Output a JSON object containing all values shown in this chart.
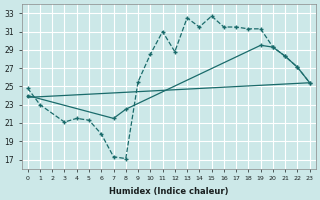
{
  "xlabel": "Humidex (Indice chaleur)",
  "bg_color": "#cce8e8",
  "line_color": "#1a6b6b",
  "grid_color": "#ffffff",
  "xlim": [
    -0.5,
    23.5
  ],
  "ylim": [
    16,
    34
  ],
  "xticks": [
    0,
    1,
    2,
    3,
    4,
    5,
    6,
    7,
    8,
    9,
    10,
    11,
    12,
    13,
    14,
    15,
    16,
    17,
    18,
    19,
    20,
    21,
    22,
    23
  ],
  "yticks": [
    17,
    19,
    21,
    23,
    25,
    27,
    29,
    31,
    33
  ],
  "line1_x": [
    0,
    1,
    3,
    4,
    5,
    6,
    7,
    8,
    9,
    10,
    11,
    12,
    13,
    14,
    15,
    16,
    17,
    18,
    19,
    20,
    21,
    22,
    23
  ],
  "line1_y": [
    24.8,
    23.0,
    21.1,
    21.5,
    21.3,
    19.8,
    17.3,
    17.1,
    25.5,
    28.5,
    31.0,
    28.8,
    32.5,
    31.5,
    32.7,
    31.5,
    31.5,
    31.3,
    31.3,
    29.3,
    28.3,
    27.1,
    25.4
  ],
  "line2_x": [
    0,
    7,
    8,
    19,
    20,
    21,
    22,
    23
  ],
  "line2_y": [
    24.0,
    21.5,
    22.5,
    29.5,
    29.3,
    28.3,
    27.1,
    25.4
  ],
  "line3_x": [
    0,
    23
  ],
  "line3_y": [
    23.8,
    25.4
  ]
}
